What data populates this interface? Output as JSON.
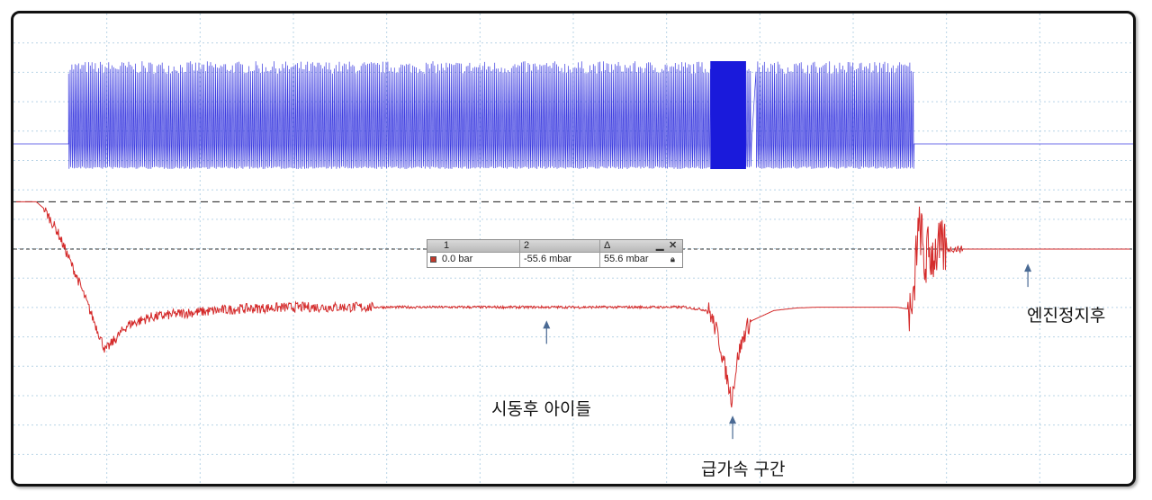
{
  "chart_data": {
    "type": "line",
    "x_range": [
      0,
      1000
    ],
    "grid": true,
    "series": [
      {
        "channel": "1",
        "color": "#1a1adb",
        "kind": "pulse-train",
        "baseline": 0,
        "pulse_amplitude": [
          -1,
          1
        ],
        "active_segments": [
          [
            47,
            659
          ],
          [
            664,
            805
          ]
        ],
        "dense_burst": [
          623,
          655
        ]
      },
      {
        "channel": "2",
        "color": "#d42a2a",
        "unit": "mbar",
        "y_range": [
          -260,
          10
        ],
        "x": [
          0,
          18,
          25,
          37,
          55,
          80,
          100,
          120,
          150,
          200,
          250,
          300,
          350,
          400,
          450,
          500,
          550,
          600,
          622,
          630,
          642,
          648,
          655,
          660,
          680,
          700,
          720,
          760,
          790,
          800,
          805,
          808,
          812,
          815,
          818,
          822,
          826,
          830,
          840,
          900,
          1000
        ],
        "y": [
          0,
          0,
          -8,
          -35,
          -90,
          -175,
          -145,
          -136,
          -131,
          -126,
          -124,
          -124,
          -124,
          -124,
          -124,
          -124,
          -124,
          -124,
          -128,
          -158,
          -232,
          -180,
          -150,
          -140,
          -128,
          -125,
          -124,
          -124,
          -124,
          -126,
          -135,
          -50,
          -30,
          -80,
          -60,
          -62,
          -58,
          -56,
          -55.6,
          -55.6,
          -55.6
        ]
      }
    ],
    "reference_lines": [
      0,
      -55.6
    ],
    "annotations": [
      {
        "text": "시동후 아이들",
        "arrow_x": 476,
        "arrow_y": -127
      },
      {
        "text": "급가속 구간",
        "arrow_x": 643,
        "arrow_y": -239
      },
      {
        "text": "엔진정지후",
        "arrow_x": 908,
        "arrow_y": -60
      }
    ]
  },
  "cursor_table": {
    "headers": [
      "1",
      "2",
      "Δ"
    ],
    "values": [
      "0.0 bar",
      "-55.6 mbar",
      "55.6 mbar"
    ],
    "minimize_icon": "minimize-icon",
    "close_icon": "close-icon",
    "lock_icon": "lock-icon"
  }
}
